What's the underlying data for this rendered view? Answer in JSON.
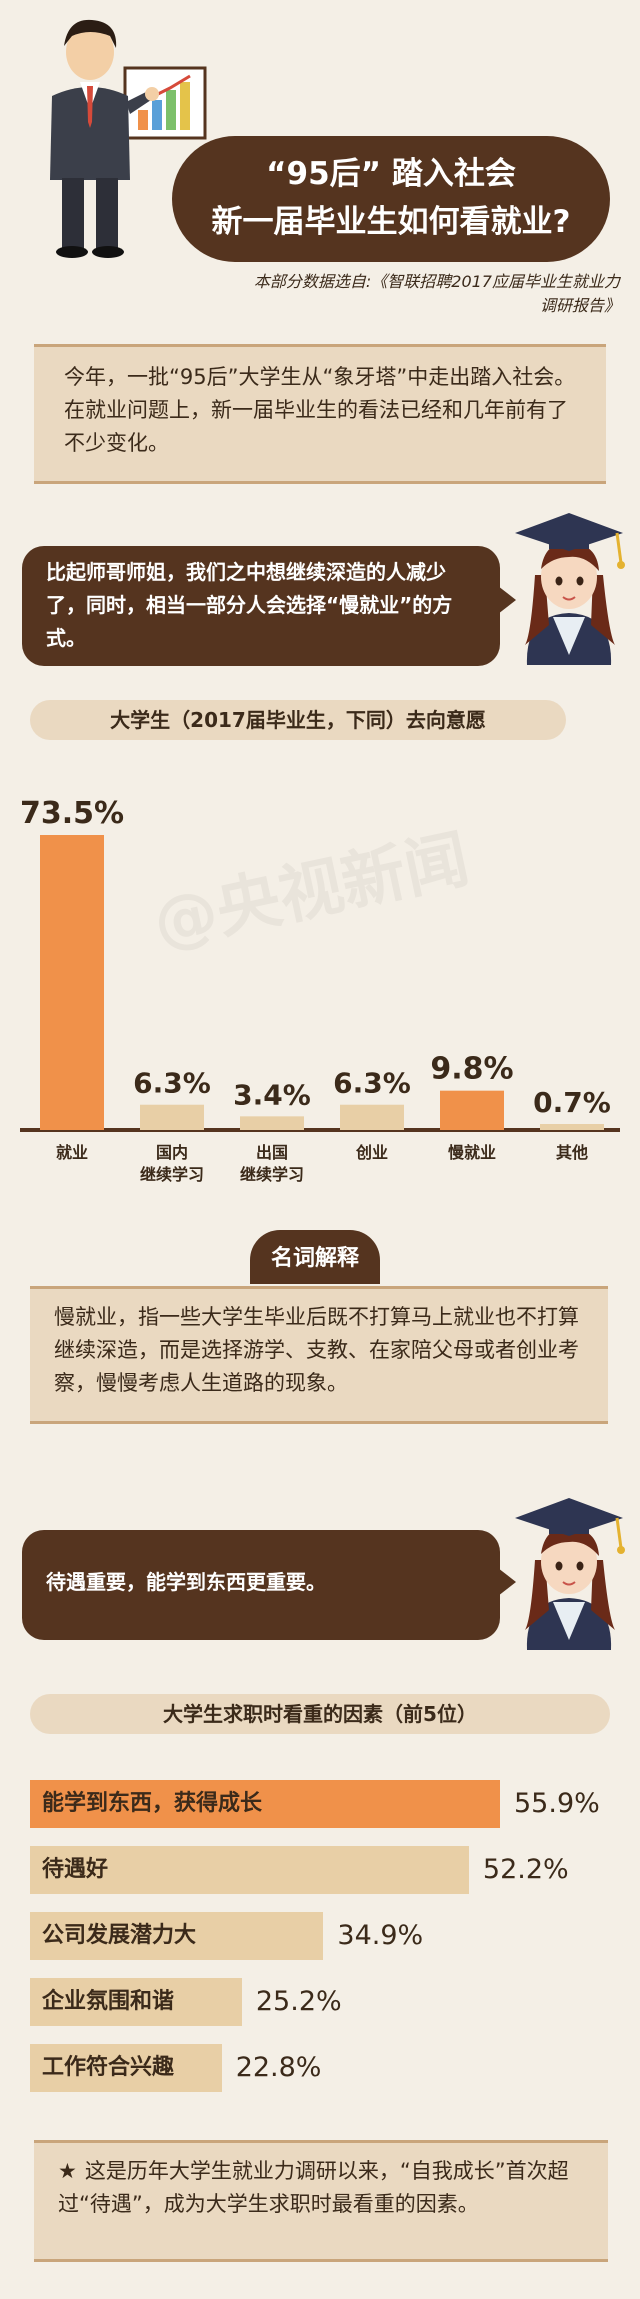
{
  "header": {
    "title_line1": "“95后” 踏入社会",
    "title_line2": "新一届毕业生如何看就业?",
    "source": "本部分数据选自:《智联招聘2017应届毕业生就业力调研报告》"
  },
  "intro": {
    "text": "今年，一批“95后”大学生从“象牙塔”中走出踏入社会。在就业问题上，新一届毕业生的看法已经和几年前有了不少变化。"
  },
  "bubble1": {
    "text": "比起师哥师姐，我们之中想继续深造的人减少了，同时，相当一部分人会选择“慢就业”的方式。"
  },
  "watermark": "@央视新闻",
  "term": {
    "tag": "名词解释",
    "text": "慢就业，指一些大学生毕业后既不打算马上就业也不打算继续深造，而是选择游学、支教、在家陪父母或者创业考察，慢慢考虑人生道路的现象。"
  },
  "bubble2": {
    "text": "待遇重要，能学到东西更重要。"
  },
  "note": {
    "star": "★",
    "text": "这是历年大学生就业力调研以来，“自我成长”首次超过“待遇”，成为大学生求职时最看重的因素。"
  },
  "colors": {
    "brown": "#55341f",
    "orange": "#f0914a",
    "beige": "#e8cfa6",
    "bg": "#f4efe6"
  },
  "chart_data": [
    {
      "type": "bar",
      "title": "大学生（2017届毕业生，下同）去向意愿",
      "categories": [
        "就业",
        "国内\n继续学习",
        "出国\n继续学习",
        "创业",
        "慢就业",
        "其他"
      ],
      "values": [
        73.5,
        6.3,
        3.4,
        6.3,
        9.8,
        0.7
      ],
      "value_labels": [
        "73.5%",
        "6.3%",
        "3.4%",
        "6.3%",
        "9.8%",
        "0.7%"
      ],
      "highlight": [
        true,
        false,
        false,
        false,
        true,
        false
      ],
      "ylim": [
        0,
        73.5
      ]
    },
    {
      "type": "bar",
      "orientation": "horizontal",
      "title": "大学生求职时看重的因素（前5位）",
      "categories": [
        "能学到东西，获得成长",
        "待遇好",
        "公司发展潜力大",
        "企业氛围和谐",
        "工作符合兴趣"
      ],
      "values": [
        55.9,
        52.2,
        34.9,
        25.2,
        22.8
      ],
      "value_labels": [
        "55.9%",
        "52.2%",
        "34.9%",
        "25.2%",
        "22.8%"
      ],
      "highlight": [
        true,
        false,
        false,
        false,
        false
      ],
      "xlim": [
        0,
        55.9
      ]
    }
  ]
}
